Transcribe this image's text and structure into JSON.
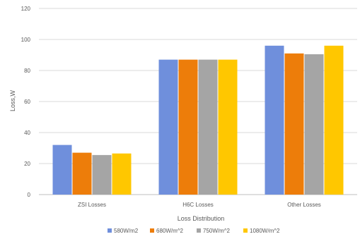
{
  "chart_data": {
    "type": "bar",
    "categories": [
      "ZSI Losses",
      "H6C Losses",
      "Other Losses"
    ],
    "series": [
      {
        "name": "580W/m2",
        "color": "#6f8fdc",
        "values": [
          32,
          87,
          96
        ]
      },
      {
        "name": "680W/m^2",
        "color": "#ed7d0a",
        "values": [
          27,
          87,
          91
        ]
      },
      {
        "name": "750W/m^2",
        "color": "#a5a5a5",
        "values": [
          25.5,
          87,
          90.5
        ]
      },
      {
        "name": "1080W/m^2",
        "color": "#ffc700",
        "values": [
          26.5,
          87,
          96
        ]
      }
    ],
    "xlabel": "Loss Distribution",
    "ylabel": "Loss,W",
    "ylim": [
      0,
      120
    ],
    "yticks": [
      0,
      20,
      40,
      60,
      80,
      100,
      120
    ],
    "grid": true,
    "legend": "bottom"
  }
}
